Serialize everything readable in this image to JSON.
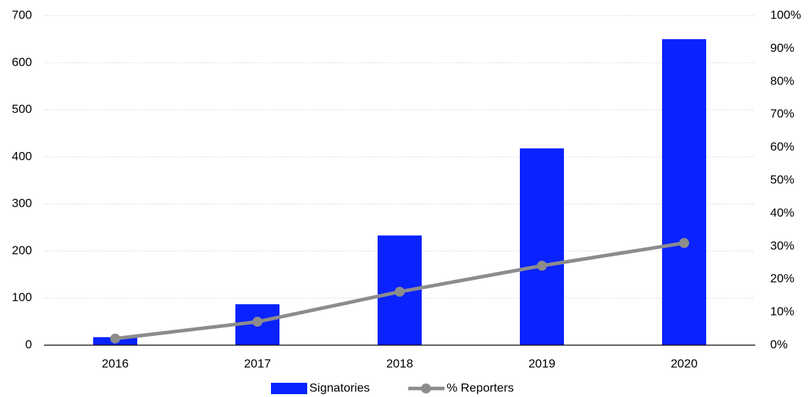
{
  "chart_data": {
    "type": "bar",
    "categories": [
      "2016",
      "2017",
      "2018",
      "2019",
      "2020"
    ],
    "series": [
      {
        "name": "Signatories",
        "type": "bar",
        "color": "#0a22ff",
        "values": [
          17,
          87,
          233,
          418,
          650
        ]
      },
      {
        "name": "% Reporters",
        "type": "line",
        "axis": "y2",
        "color": "#8c8c8c",
        "values": [
          2,
          7.1,
          16.2,
          24.1,
          31
        ]
      }
    ],
    "ylim": [
      0,
      700
    ],
    "yticks": [
      0,
      100,
      200,
      300,
      400,
      500,
      600,
      700
    ],
    "y2lim": [
      0,
      100
    ],
    "y2ticks": [
      {
        "value": 0,
        "label": "0%"
      },
      {
        "value": 10,
        "label": "10%"
      },
      {
        "value": 20,
        "label": "20%"
      },
      {
        "value": 30,
        "label": "30%"
      },
      {
        "value": 40,
        "label": "40%"
      },
      {
        "value": 50,
        "label": "50%"
      },
      {
        "value": 60,
        "label": "60%"
      },
      {
        "value": 70,
        "label": "70%"
      },
      {
        "value": 80,
        "label": "80%"
      },
      {
        "value": 90,
        "label": "90%"
      },
      {
        "value": 100,
        "label": "100%"
      }
    ],
    "grid": true,
    "legend": "bottom"
  }
}
